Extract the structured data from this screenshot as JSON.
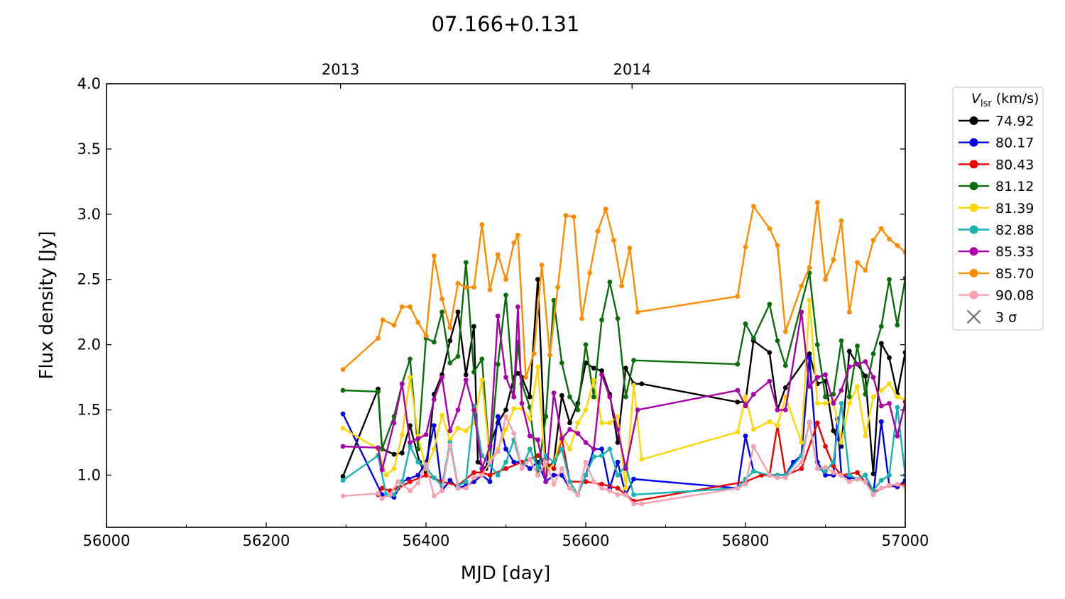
{
  "chart_data": {
    "type": "line",
    "title": "07.166+0.131",
    "xlabel": "MJD [day]",
    "ylabel": "Flux density [Jy]",
    "xlim": [
      56000,
      57000
    ],
    "ylim": [
      0.6,
      4.0
    ],
    "x_ticks": [
      56000,
      56200,
      56400,
      56600,
      56800,
      57000
    ],
    "y_ticks": [
      "1.0",
      "1.5",
      "2.0",
      "2.5",
      "3.0",
      "3.5",
      "4.0"
    ],
    "top_axis": {
      "ticks": [
        {
          "label": "2013",
          "x": 56293
        },
        {
          "label": "2014",
          "x": 56658
        }
      ]
    },
    "legend": {
      "title_main": "V",
      "title_sub": "lsr",
      "title_unit": " (km/s)",
      "placement": "outside-right",
      "sigma_label": "3 σ",
      "sigma_color": "#777777"
    },
    "series": [
      {
        "name": "74.92",
        "color": "#000000",
        "x": [
          56296,
          56340,
          56345,
          56360,
          56370,
          56380,
          56392,
          56400,
          56410,
          56420,
          56430,
          56440,
          56450,
          56460,
          56465,
          56475,
          56480,
          56490,
          56500,
          56510,
          56515,
          56520,
          56530,
          56540,
          56550,
          56560,
          56570,
          56580,
          56590,
          56600,
          56610,
          56620,
          56630,
          56640,
          56650,
          56660,
          56670,
          56790,
          56800,
          56810,
          56830,
          56840,
          56850,
          56880,
          56890,
          56900,
          56910,
          56920,
          56930,
          56940,
          56950,
          56960,
          56970,
          56980,
          56990,
          57000
        ],
        "y": [
          0.99,
          1.66,
          1.2,
          1.16,
          1.17,
          1.38,
          1.1,
          1.0,
          1.62,
          1.77,
          2.03,
          2.25,
          1.77,
          2.14,
          1.1,
          1.05,
          1.22,
          1.4,
          1.5,
          1.75,
          1.78,
          1.75,
          1.6,
          2.5,
          1.05,
          1.1,
          1.61,
          1.4,
          1.55,
          1.86,
          1.82,
          1.8,
          1.62,
          1.25,
          1.82,
          1.7,
          1.7,
          1.56,
          1.56,
          2.03,
          1.94,
          1.5,
          1.67,
          1.93,
          1.7,
          1.72,
          1.34,
          1.22,
          1.95,
          1.85,
          1.76,
          1.01,
          2.01,
          1.9,
          1.62,
          1.94
        ]
      },
      {
        "name": "80.17",
        "color": "#0000ee",
        "x": [
          56296,
          56345,
          56360,
          56370,
          56378,
          56390,
          56400,
          56410,
          56420,
          56430,
          56440,
          56450,
          56460,
          56470,
          56480,
          56490,
          56500,
          56510,
          56520,
          56530,
          56540,
          56550,
          56560,
          56570,
          56580,
          56590,
          56600,
          56610,
          56620,
          56630,
          56640,
          56650,
          56660,
          56790,
          56800,
          56810,
          56830,
          56840,
          56850,
          56860,
          56870,
          56880,
          56890,
          56900,
          56910,
          56915,
          56920,
          56930,
          56940,
          56950,
          56960,
          56970,
          56980,
          56990,
          57000
        ],
        "y": [
          1.47,
          0.85,
          0.83,
          0.95,
          0.97,
          1.0,
          1.1,
          1.38,
          0.88,
          0.96,
          0.9,
          0.92,
          0.95,
          1.0,
          0.95,
          1.45,
          1.2,
          1.1,
          1.1,
          1.05,
          1.1,
          0.95,
          1.0,
          1.0,
          0.9,
          0.85,
          1.0,
          1.2,
          1.2,
          0.9,
          1.1,
          0.85,
          0.97,
          0.9,
          1.3,
          1.03,
          1.0,
          1.0,
          1.0,
          1.1,
          1.15,
          1.9,
          1.1,
          1.0,
          1.0,
          1.43,
          1.0,
          0.98,
          0.97,
          1.0,
          0.85,
          1.41,
          0.92,
          0.91,
          0.96
        ]
      },
      {
        "name": "80.43",
        "color": "#ee0000",
        "x": [
          56340,
          56345,
          56355,
          56365,
          56380,
          56400,
          56420,
          56440,
          56460,
          56470,
          56480,
          56500,
          56520,
          56540,
          56560,
          56570,
          56580,
          56600,
          56620,
          56640,
          56660,
          56800,
          56820,
          56830,
          56840,
          56850,
          56870,
          56890,
          56900,
          56910,
          56920,
          56940,
          56960,
          56980,
          57000
        ],
        "y": [
          0.85,
          0.9,
          0.88,
          0.9,
          0.95,
          1.0,
          0.95,
          0.92,
          1.02,
          1.02,
          1.0,
          1.05,
          1.1,
          1.15,
          1.05,
          1.28,
          0.95,
          0.95,
          0.93,
          0.9,
          0.8,
          0.95,
          1.0,
          1.0,
          1.38,
          1.0,
          1.05,
          1.4,
          1.22,
          1.07,
          1.0,
          1.02,
          0.87,
          0.92,
          0.93
        ]
      },
      {
        "name": "81.12",
        "color": "#0a6e0a",
        "x": [
          56296,
          56340,
          56345,
          56360,
          56370,
          56380,
          56390,
          56400,
          56410,
          56420,
          56430,
          56440,
          56450,
          56460,
          56470,
          56480,
          56490,
          56500,
          56510,
          56515,
          56520,
          56530,
          56540,
          56550,
          56560,
          56570,
          56580,
          56590,
          56600,
          56610,
          56620,
          56630,
          56640,
          56650,
          56660,
          56790,
          56800,
          56810,
          56830,
          56840,
          56850,
          56880,
          56890,
          56900,
          56910,
          56920,
          56930,
          56940,
          56950,
          56960,
          56970,
          56980,
          56990,
          57000
        ],
        "y": [
          1.65,
          1.64,
          1.2,
          1.45,
          1.7,
          1.89,
          1.2,
          2.05,
          2.02,
          2.25,
          1.86,
          1.91,
          2.63,
          1.79,
          1.89,
          1.1,
          1.85,
          2.38,
          1.6,
          2.02,
          1.7,
          1.52,
          1.0,
          1.45,
          2.34,
          1.86,
          1.6,
          1.5,
          2.0,
          1.6,
          2.19,
          2.48,
          2.2,
          1.6,
          1.88,
          1.85,
          2.16,
          2.05,
          2.31,
          2.03,
          1.84,
          2.55,
          2.0,
          1.6,
          1.62,
          2.03,
          1.6,
          1.99,
          1.62,
          1.93,
          2.14,
          2.5,
          2.15,
          2.51
        ]
      },
      {
        "name": "81.39",
        "color": "#ffd700",
        "x": [
          56296,
          56340,
          56350,
          56360,
          56370,
          56380,
          56390,
          56400,
          56410,
          56420,
          56430,
          56440,
          56450,
          56460,
          56470,
          56480,
          56490,
          56500,
          56510,
          56520,
          56530,
          56540,
          56550,
          56560,
          56570,
          56580,
          56590,
          56600,
          56610,
          56620,
          56630,
          56640,
          56650,
          56660,
          56670,
          56790,
          56800,
          56810,
          56830,
          56840,
          56850,
          56870,
          56880,
          56890,
          56900,
          56910,
          56920,
          56930,
          56940,
          56950,
          56960,
          56970,
          56980,
          56990,
          57000
        ],
        "y": [
          1.36,
          1.2,
          1.0,
          1.05,
          1.31,
          1.75,
          1.3,
          1.05,
          1.2,
          1.46,
          1.27,
          1.36,
          1.34,
          1.4,
          1.73,
          1.1,
          1.2,
          1.35,
          1.51,
          1.51,
          1.43,
          1.83,
          1.0,
          1.1,
          1.3,
          1.2,
          1.4,
          1.5,
          1.73,
          1.4,
          1.4,
          1.45,
          0.9,
          1.69,
          1.12,
          1.33,
          1.6,
          1.35,
          1.41,
          1.38,
          1.6,
          1.25,
          2.34,
          1.55,
          1.55,
          1.57,
          1.25,
          1.55,
          1.68,
          1.3,
          1.6,
          1.65,
          1.7,
          1.6,
          1.58
        ]
      },
      {
        "name": "82.88",
        "color": "#17b3b0",
        "x": [
          56296,
          56340,
          56350,
          56360,
          56370,
          56380,
          56390,
          56400,
          56410,
          56420,
          56430,
          56440,
          56450,
          56460,
          56470,
          56480,
          56490,
          56500,
          56510,
          56520,
          56530,
          56540,
          56550,
          56560,
          56570,
          56580,
          56590,
          56600,
          56610,
          56620,
          56630,
          56640,
          56650,
          56660,
          56790,
          56800,
          56810,
          56830,
          56840,
          56850,
          56870,
          56880,
          56890,
          56900,
          56910,
          56920,
          56930,
          56940,
          56950,
          56960,
          56970,
          56980,
          56990,
          57000
        ],
        "y": [
          0.96,
          1.15,
          0.85,
          0.85,
          0.95,
          1.22,
          1.1,
          1.06,
          0.98,
          0.92,
          1.25,
          0.92,
          0.95,
          1.53,
          1.15,
          1.08,
          1.0,
          1.1,
          1.27,
          1.05,
          1.2,
          1.05,
          1.15,
          1.1,
          1.2,
          0.95,
          0.85,
          1.0,
          1.14,
          1.15,
          1.2,
          1.0,
          1.07,
          0.85,
          0.9,
          0.97,
          1.03,
          1.0,
          1.0,
          1.0,
          1.15,
          1.4,
          1.05,
          1.03,
          1.1,
          1.55,
          1.0,
          0.97,
          1.0,
          0.88,
          0.96,
          1.0,
          1.52,
          1.0
        ]
      },
      {
        "name": "85.33",
        "color": "#aa00aa",
        "x": [
          56296,
          56340,
          56345,
          56360,
          56370,
          56380,
          56390,
          56400,
          56410,
          56420,
          56430,
          56440,
          56450,
          56460,
          56470,
          56480,
          56490,
          56500,
          56510,
          56515,
          56520,
          56530,
          56540,
          56550,
          56560,
          56570,
          56580,
          56590,
          56600,
          56610,
          56620,
          56630,
          56640,
          56650,
          56665,
          56790,
          56800,
          56810,
          56830,
          56840,
          56850,
          56870,
          56880,
          56890,
          56900,
          56910,
          56920,
          56930,
          56940,
          56950,
          56960,
          56970,
          56980,
          56990,
          57000
        ],
        "y": [
          1.22,
          1.21,
          1.04,
          1.4,
          1.7,
          1.25,
          1.28,
          1.31,
          1.58,
          1.75,
          1.34,
          1.5,
          1.73,
          1.5,
          1.05,
          1.22,
          2.22,
          1.75,
          1.6,
          2.29,
          1.55,
          1.3,
          1.27,
          0.95,
          1.63,
          1.28,
          1.35,
          1.32,
          1.25,
          1.2,
          1.77,
          1.6,
          1.35,
          1.05,
          1.5,
          1.65,
          1.53,
          1.62,
          1.72,
          1.5,
          1.5,
          2.25,
          1.68,
          1.75,
          1.77,
          1.55,
          1.65,
          1.83,
          1.85,
          1.87,
          1.75,
          1.53,
          1.55,
          1.3,
          1.56
        ]
      },
      {
        "name": "85.70",
        "color": "#ff8c00",
        "x": [
          56296,
          56340,
          56346,
          56360,
          56370,
          56380,
          56390,
          56400,
          56410,
          56420,
          56430,
          56440,
          56450,
          56460,
          56470,
          56480,
          56490,
          56500,
          56510,
          56515,
          56525,
          56535,
          56545,
          56555,
          56565,
          56575,
          56585,
          56595,
          56605,
          56615,
          56625,
          56635,
          56645,
          56655,
          56665,
          56790,
          56800,
          56810,
          56830,
          56840,
          56850,
          56870,
          56880,
          56890,
          56900,
          56910,
          56920,
          56930,
          56940,
          56950,
          56960,
          56970,
          56980,
          56990,
          57000
        ],
        "y": [
          1.81,
          2.05,
          2.19,
          2.15,
          2.29,
          2.29,
          2.17,
          2.07,
          2.68,
          2.35,
          2.13,
          2.47,
          2.44,
          2.44,
          2.92,
          2.42,
          2.69,
          2.5,
          2.78,
          2.84,
          1.75,
          1.93,
          2.61,
          1.92,
          2.44,
          2.99,
          2.98,
          2.2,
          2.55,
          2.87,
          3.04,
          2.8,
          2.45,
          2.74,
          2.25,
          2.37,
          2.75,
          3.06,
          2.89,
          2.76,
          2.1,
          2.45,
          2.59,
          3.09,
          2.5,
          2.65,
          2.95,
          2.25,
          2.63,
          2.57,
          2.8,
          2.89,
          2.81,
          2.76,
          2.71
        ]
      },
      {
        "name": "90.08",
        "color": "#f7a0b0",
        "x": [
          56296,
          56340,
          56345,
          56355,
          56365,
          56380,
          56390,
          56400,
          56410,
          56420,
          56430,
          56440,
          56450,
          56460,
          56470,
          56480,
          56490,
          56500,
          56510,
          56520,
          56530,
          56540,
          56550,
          56560,
          56570,
          56580,
          56590,
          56600,
          56610,
          56620,
          56630,
          56640,
          56650,
          56660,
          56670,
          56790,
          56800,
          56810,
          56830,
          56840,
          56850,
          56870,
          56880,
          56890,
          56900,
          56910,
          56920,
          56930,
          56940,
          56950,
          56960,
          56970,
          56980,
          56990,
          57000
        ],
        "y": [
          0.84,
          0.86,
          0.82,
          0.85,
          0.95,
          0.88,
          0.94,
          1.08,
          0.84,
          0.88,
          1.23,
          0.9,
          0.9,
          0.98,
          1.0,
          1.1,
          1.18,
          1.45,
          1.32,
          1.05,
          1.12,
          1.0,
          1.1,
          0.93,
          1.05,
          0.9,
          0.85,
          1.1,
          0.95,
          0.9,
          0.88,
          0.85,
          0.85,
          0.78,
          0.78,
          0.9,
          0.93,
          1.22,
          1.0,
          0.98,
          0.98,
          1.1,
          1.41,
          1.05,
          1.06,
          1.02,
          1.0,
          0.95,
          0.97,
          0.95,
          0.85,
          0.9,
          0.92,
          0.93,
          0.91
        ]
      }
    ]
  }
}
